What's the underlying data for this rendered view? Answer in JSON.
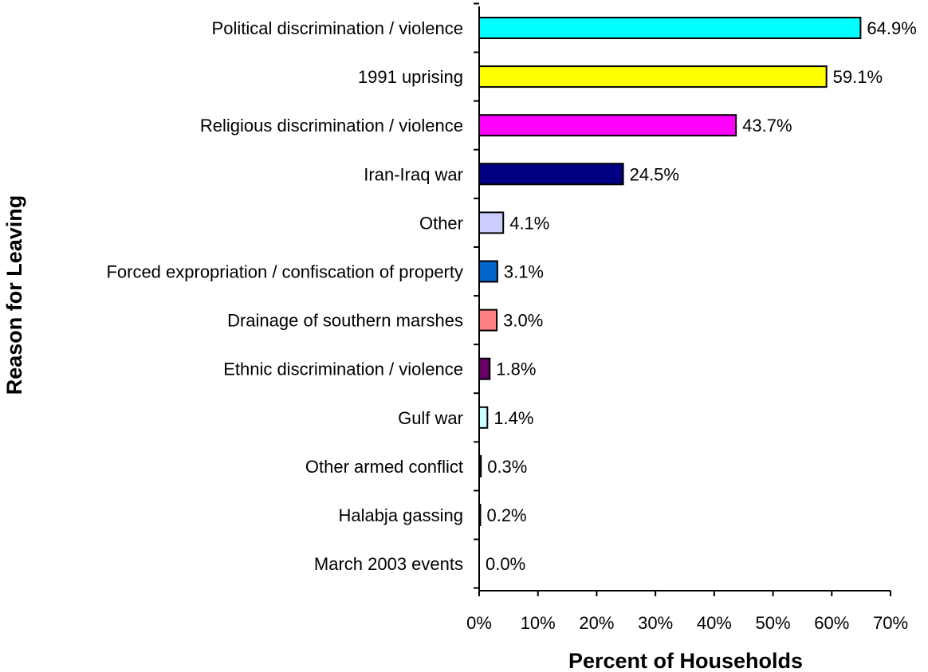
{
  "chart_data": {
    "type": "bar",
    "orientation": "horizontal",
    "categories": [
      "Political discrimination / violence",
      "1991 uprising",
      "Religious discrimination / violence",
      "Iran-Iraq war",
      "Other",
      "Forced expropriation / confiscation of property",
      "Drainage of southern marshes",
      "Ethnic discrimination / violence",
      "Gulf war",
      "Other armed conflict",
      "Halabja gassing",
      "March 2003 events"
    ],
    "values": [
      64.9,
      59.1,
      43.7,
      24.5,
      4.1,
      3.1,
      3.0,
      1.8,
      1.4,
      0.3,
      0.2,
      0.0
    ],
    "value_labels": [
      "64.9%",
      "59.1%",
      "43.7%",
      "24.5%",
      "4.1%",
      "3.1%",
      "3.0%",
      "1.8%",
      "1.4%",
      "0.3%",
      "0.2%",
      "0.0%"
    ],
    "colors": [
      "#00ffff",
      "#ffff00",
      "#ff00ff",
      "#000080",
      "#ccccff",
      "#0066cc",
      "#ff8080",
      "#660066",
      "#ccffff",
      "#000080",
      "#000080",
      "#000080"
    ],
    "xlim": [
      0,
      70
    ],
    "xticks": [
      0,
      10,
      20,
      30,
      40,
      50,
      60,
      70
    ],
    "xtick_labels": [
      "0%",
      "10%",
      "20%",
      "30%",
      "40%",
      "50%",
      "60%",
      "70%"
    ],
    "xlabel": "Percent of Households",
    "ylabel": "Reason for Leaving",
    "grid": false,
    "legend": "none"
  }
}
